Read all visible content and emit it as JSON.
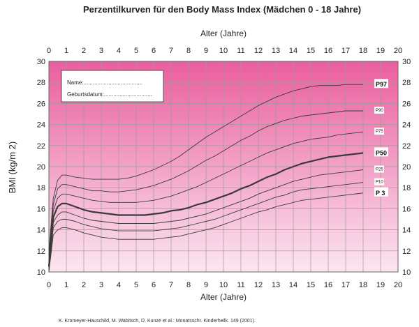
{
  "chart_data": {
    "type": "line",
    "title": "Perzentilkurven für den Body Mass Index (Mädchen 0 - 18 Jahre)",
    "xlabel": "Alter (Jahre)",
    "ylabel": "BMI (kg/m 2)",
    "xlim": [
      0,
      20
    ],
    "ylim": [
      10,
      30
    ],
    "x_ticks": [
      0,
      1,
      2,
      3,
      4,
      5,
      6,
      7,
      8,
      9,
      10,
      11,
      12,
      13,
      14,
      15,
      16,
      17,
      18,
      19,
      20
    ],
    "y_ticks": [
      10,
      12,
      14,
      16,
      18,
      20,
      22,
      24,
      26,
      28,
      30
    ],
    "grid": true,
    "background_colors": [
      "#ea5e9d",
      "#fbe6f1"
    ],
    "info_box": {
      "name_label": "Name:......................................",
      "birth_label": "Geburtsdatum:..............................."
    },
    "x": [
      0,
      0.25,
      0.5,
      0.75,
      1,
      1.5,
      2,
      2.5,
      3,
      3.5,
      4,
      4.5,
      5,
      5.5,
      6,
      6.5,
      7,
      7.5,
      8,
      8.5,
      9,
      9.5,
      10,
      10.5,
      11,
      11.5,
      12,
      12.5,
      13,
      13.5,
      14,
      14.5,
      15,
      15.5,
      16,
      16.5,
      17,
      17.5,
      18
    ],
    "series": [
      {
        "name": "P97",
        "bold": false,
        "values": [
          12.0,
          17.0,
          18.7,
          19.2,
          19.2,
          19.0,
          18.9,
          18.8,
          18.8,
          18.8,
          18.8,
          18.9,
          19.1,
          19.4,
          19.7,
          20.1,
          20.5,
          21.0,
          21.6,
          22.2,
          22.8,
          23.3,
          23.8,
          24.3,
          24.8,
          25.3,
          25.8,
          26.2,
          26.6,
          26.9,
          27.2,
          27.4,
          27.6,
          27.7,
          27.7,
          27.7,
          27.8,
          27.8,
          27.8
        ]
      },
      {
        "name": "P90",
        "bold": false,
        "values": [
          11.5,
          16.4,
          17.9,
          18.3,
          18.3,
          18.1,
          17.9,
          17.7,
          17.7,
          17.6,
          17.6,
          17.7,
          17.8,
          18.0,
          18.2,
          18.5,
          18.8,
          19.2,
          19.6,
          20.1,
          20.6,
          21.0,
          21.5,
          22.0,
          22.5,
          22.9,
          23.4,
          23.8,
          24.1,
          24.4,
          24.6,
          24.8,
          24.9,
          25.0,
          25.1,
          25.2,
          25.3,
          25.3,
          25.3
        ]
      },
      {
        "name": "P75",
        "bold": false,
        "values": [
          11.0,
          15.8,
          17.0,
          17.4,
          17.4,
          17.2,
          17.0,
          16.8,
          16.7,
          16.6,
          16.6,
          16.6,
          16.6,
          16.7,
          16.8,
          17.0,
          17.2,
          17.5,
          17.8,
          18.1,
          18.5,
          18.9,
          19.3,
          19.7,
          20.1,
          20.5,
          20.9,
          21.3,
          21.6,
          21.9,
          22.2,
          22.4,
          22.6,
          22.7,
          22.8,
          23.0,
          23.1,
          23.2,
          23.3
        ]
      },
      {
        "name": "P50",
        "bold": true,
        "values": [
          10.5,
          15.2,
          16.2,
          16.5,
          16.5,
          16.2,
          15.9,
          15.7,
          15.6,
          15.5,
          15.4,
          15.4,
          15.4,
          15.4,
          15.5,
          15.6,
          15.8,
          15.9,
          16.1,
          16.4,
          16.6,
          16.9,
          17.2,
          17.5,
          17.9,
          18.2,
          18.6,
          19.0,
          19.3,
          19.7,
          20.0,
          20.3,
          20.5,
          20.7,
          20.9,
          21.0,
          21.1,
          21.2,
          21.3
        ]
      },
      {
        "name": "P25",
        "bold": false,
        "values": [
          10.3,
          14.7,
          15.4,
          15.7,
          15.7,
          15.4,
          15.1,
          14.9,
          14.8,
          14.7,
          14.6,
          14.6,
          14.6,
          14.6,
          14.6,
          14.7,
          14.8,
          14.9,
          15.1,
          15.3,
          15.5,
          15.8,
          16.1,
          16.4,
          16.7,
          17.0,
          17.4,
          17.7,
          18.0,
          18.3,
          18.6,
          18.8,
          19.0,
          19.2,
          19.3,
          19.4,
          19.5,
          19.6,
          19.7
        ]
      },
      {
        "name": "P10",
        "bold": false,
        "values": [
          10.2,
          14.2,
          14.8,
          15.0,
          15.0,
          14.8,
          14.5,
          14.3,
          14.1,
          14.0,
          13.9,
          13.9,
          13.9,
          13.9,
          13.9,
          14.0,
          14.1,
          14.2,
          14.4,
          14.6,
          14.8,
          15.0,
          15.3,
          15.6,
          15.9,
          16.2,
          16.5,
          16.8,
          17.1,
          17.3,
          17.6,
          17.8,
          17.9,
          18.0,
          18.1,
          18.2,
          18.3,
          18.4,
          18.5
        ]
      },
      {
        "name": "P 3",
        "bold": false,
        "values": [
          10.0,
          13.5,
          14.0,
          14.2,
          14.2,
          14.0,
          13.7,
          13.5,
          13.3,
          13.2,
          13.1,
          13.1,
          13.1,
          13.1,
          13.1,
          13.2,
          13.3,
          13.4,
          13.6,
          13.8,
          14.0,
          14.2,
          14.5,
          14.8,
          15.1,
          15.4,
          15.7,
          15.9,
          16.2,
          16.4,
          16.6,
          16.8,
          16.9,
          17.0,
          17.1,
          17.2,
          17.3,
          17.4,
          17.5
        ]
      }
    ],
    "source": "K. Kromeyer-Hauschild, M. Wabitsch, D. Kunze et al.: Monatsschr. Kinderheilk. 149 (2001)."
  }
}
